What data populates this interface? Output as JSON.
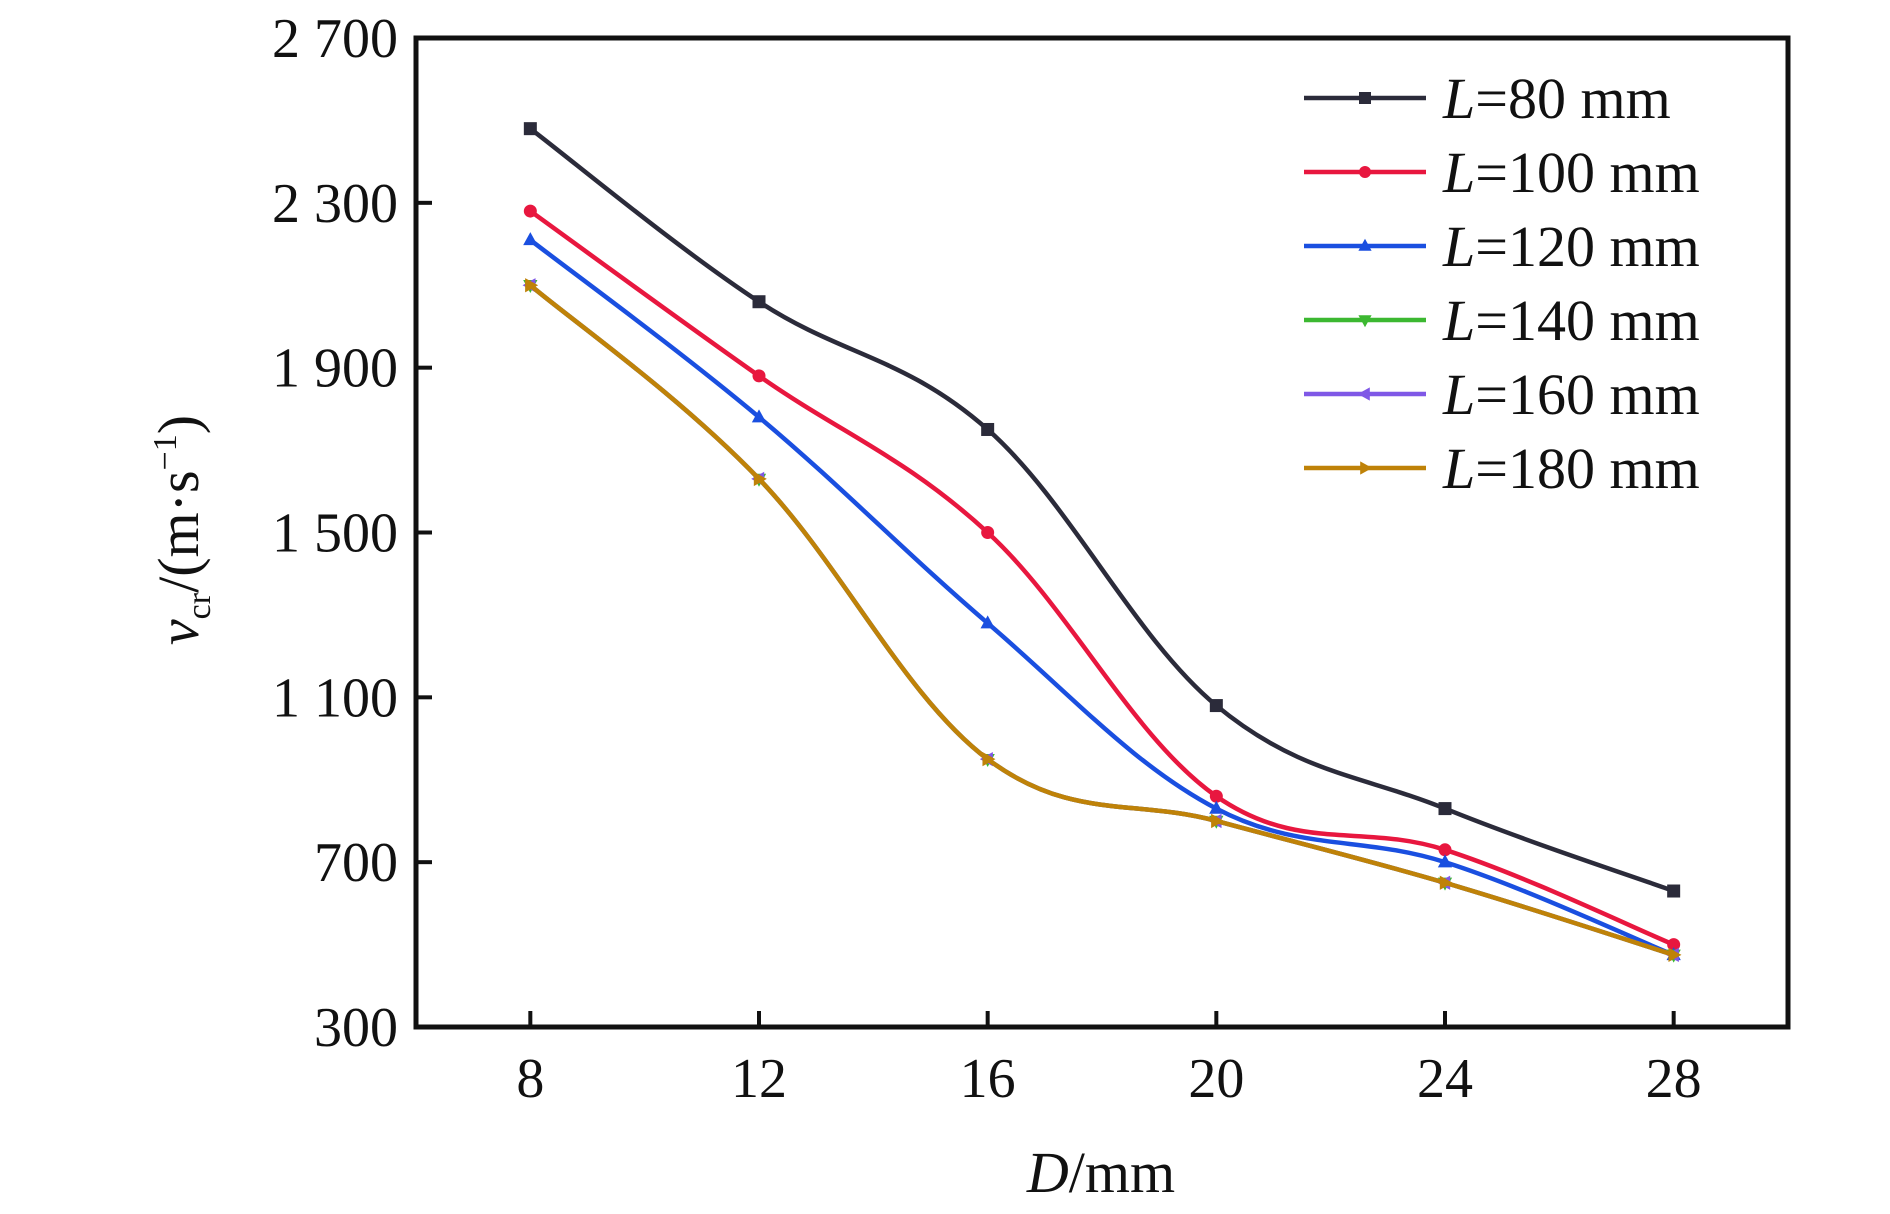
{
  "chart_data": {
    "type": "line",
    "title": "",
    "xlabel": {
      "var": "D",
      "unit": "/mm"
    },
    "ylabel": {
      "var": "v",
      "sub": "cr",
      "unit_pre": "/(m·s",
      "unit_sup": "−1",
      "unit_post": ")"
    },
    "xlim": [
      6,
      30
    ],
    "ylim": [
      300,
      2700
    ],
    "x_ticks": [
      8,
      12,
      16,
      20,
      24,
      28
    ],
    "x_tick_labels": [
      "8",
      "12",
      "16",
      "20",
      "24",
      "28"
    ],
    "y_ticks": [
      300,
      700,
      1100,
      1500,
      1900,
      2300,
      2700
    ],
    "y_tick_labels": [
      "300",
      "700",
      "1 100",
      "1 500",
      "1 900",
      "2 300",
      "2 700"
    ],
    "grid": false,
    "legend_position": "top-right",
    "x": [
      8,
      12,
      16,
      20,
      24,
      28
    ],
    "series": [
      {
        "name": "L=80 mm",
        "var": "L",
        "label_rest": "=80 mm",
        "color": "#2b2b3a",
        "marker": "square",
        "values": [
          2480,
          2060,
          1750,
          1080,
          830,
          630
        ]
      },
      {
        "name": "L=100 mm",
        "var": "L",
        "label_rest": "=100 mm",
        "color": "#e8173f",
        "marker": "circle",
        "values": [
          2280,
          1880,
          1500,
          860,
          730,
          500
        ]
      },
      {
        "name": "L=120 mm",
        "var": "L",
        "label_rest": "=120 mm",
        "color": "#1a4fe0",
        "marker": "triangle-up",
        "values": [
          2210,
          1780,
          1280,
          830,
          700,
          475
        ]
      },
      {
        "name": "L=140 mm",
        "var": "L",
        "label_rest": "=140 mm",
        "color": "#3cb831",
        "marker": "triangle-down",
        "values": [
          2100,
          1630,
          950,
          800,
          650,
          475
        ]
      },
      {
        "name": "L=160 mm",
        "var": "L",
        "label_rest": "=160 mm",
        "color": "#7f58e6",
        "marker": "triangle-left",
        "values": [
          2100,
          1630,
          950,
          800,
          650,
          475
        ]
      },
      {
        "name": "L=180 mm",
        "var": "L",
        "label_rest": "=180 mm",
        "color": "#bf8208",
        "marker": "triangle-right",
        "values": [
          2100,
          1630,
          950,
          800,
          650,
          475
        ]
      }
    ]
  }
}
